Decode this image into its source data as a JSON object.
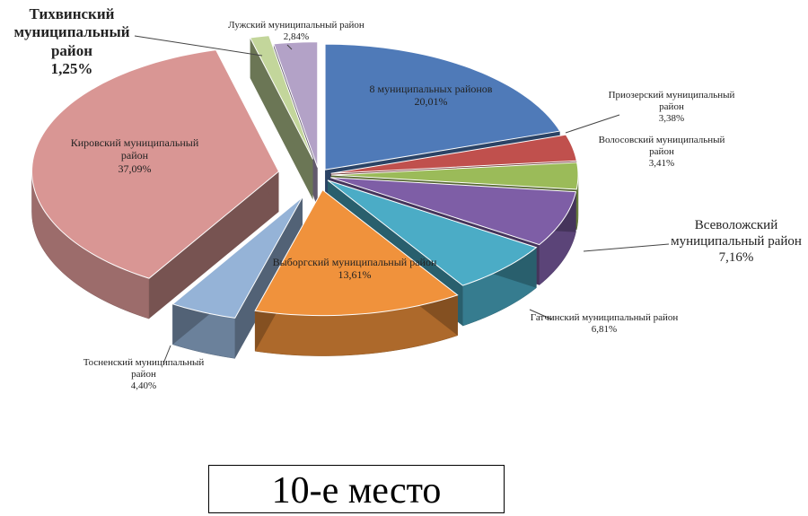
{
  "chart_data": {
    "type": "pie3d",
    "categories": [
      "8 муниципальных районов",
      "Приозерский муниципальный район",
      "Волосовский муниципальный район",
      "Всеволожский муниципальный район",
      "Гатчинский муниципальный район",
      "Выборгский муниципальный район",
      "Тосненский муниципальный район",
      "Кировский муниципальный район",
      "Тихвинский муниципальный район",
      "Лужский муниципальный район"
    ],
    "values": [
      20.01,
      3.38,
      3.41,
      7.16,
      6.81,
      13.61,
      4.4,
      37.09,
      1.25,
      2.84
    ],
    "value_labels": [
      "20,01%",
      "3,38%",
      "3,41%",
      "7,16%",
      "6,81%",
      "13,61%",
      "4,40%",
      "37,09%",
      "1,25%",
      "2,84%"
    ],
    "colors": [
      "#4f7ab8",
      "#c0504d",
      "#9bbb59",
      "#7e5ea6",
      "#4bacc6",
      "#f0923c",
      "#95b3d7",
      "#d99694",
      "#c3d69b",
      "#b3a2c7"
    ]
  },
  "caption": "10-е место"
}
